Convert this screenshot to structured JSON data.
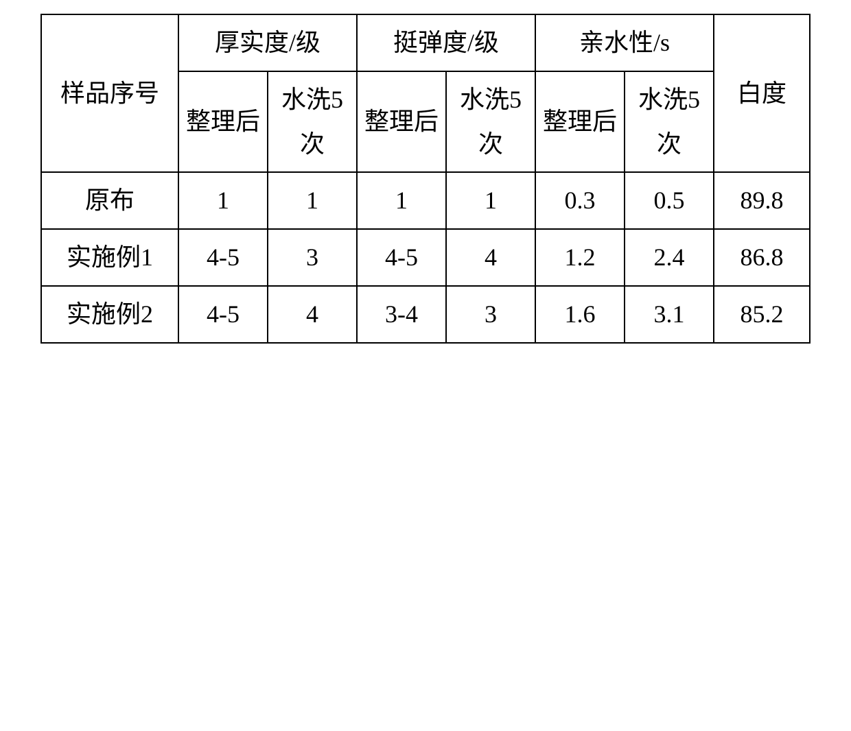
{
  "table": {
    "border_color": "#000000",
    "background_color": "#ffffff",
    "text_color": "#000000",
    "font_size": 36,
    "font_family": "SimSun",
    "headers": {
      "sample_no": "样品序号",
      "thickness": "厚实度/级",
      "stiffness": "挺弹度/级",
      "hydrophilicity": "亲水性/s",
      "whiteness": "白度",
      "after_finish": "整理后",
      "wash5a": "水洗5次",
      "wash5b": "水洗5次",
      "wash5c": "水洗5次"
    },
    "columns": [
      "样品序号",
      "厚实度/级-整理后",
      "厚实度/级-水洗5次",
      "挺弹度/级-整理后",
      "挺弹度/级-水洗5次",
      "亲水性/s-整理后",
      "亲水性/s-水洗5次",
      "白度"
    ],
    "rows": [
      {
        "sample": "原布",
        "thick_after": "1",
        "thick_wash": "1",
        "stiff_after": "1",
        "stiff_wash": "1",
        "hydro_after": "0.3",
        "hydro_wash": "0.5",
        "whiteness": "89.8"
      },
      {
        "sample": "实施例1",
        "thick_after": "4-5",
        "thick_wash": "3",
        "stiff_after": "4-5",
        "stiff_wash": "4",
        "hydro_after": "1.2",
        "hydro_wash": "2.4",
        "whiteness": "86.8"
      },
      {
        "sample": "实施例2",
        "thick_after": "4-5",
        "thick_wash": "4",
        "stiff_after": "3-4",
        "stiff_wash": "3",
        "hydro_after": "1.6",
        "hydro_wash": "3.1",
        "whiteness": "85.2"
      }
    ]
  }
}
